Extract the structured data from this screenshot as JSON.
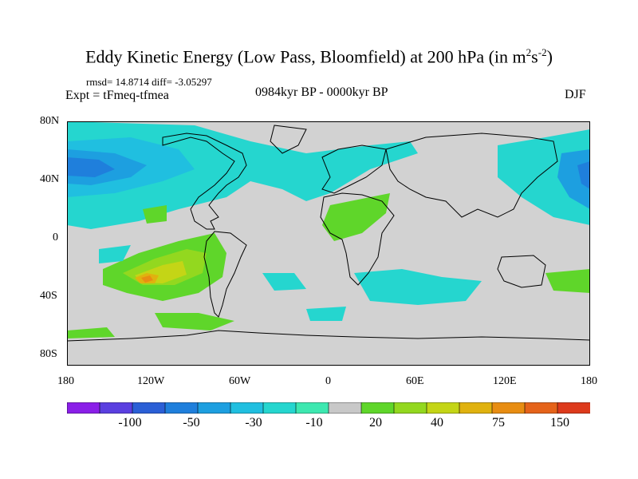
{
  "figure": {
    "title": "Eddy Kinetic Energy (Low Pass, Bloomfield) at 200 hPa (in m",
    "title_sup1": "2",
    "title_mid": "s",
    "title_sup2": "-2",
    "title_end": ")",
    "stats": "rmsd= 14.8714  diff= -3.05297",
    "experiment": "Expt = tFmeq-tfmea",
    "period": "0984kyr BP - 0000kyr BP",
    "season": "DJF"
  },
  "axes": {
    "lat_ticks": [
      "80N",
      "40N",
      "0",
      "40S",
      "80S"
    ],
    "lon_ticks": [
      "180",
      "120W",
      "60W",
      "0",
      "60E",
      "120E",
      "180"
    ]
  },
  "colorbar": {
    "labels": [
      "-100",
      "-50",
      "-30",
      "-10",
      "20",
      "40",
      "75",
      "150"
    ],
    "colors": [
      "#8a1fe8",
      "#5a3fe0",
      "#2b5fd6",
      "#1f7fdc",
      "#1d9fe0",
      "#20bfe0",
      "#25d6cf",
      "#3de8b0",
      "#c8c8c8",
      "#5fd62a",
      "#93d81f",
      "#c4d516",
      "#e0b20f",
      "#e88d12",
      "#e5631a",
      "#dd3a1c"
    ]
  },
  "map": {
    "background_color": "#d2d2d2",
    "coastline_color": "#000000"
  }
}
